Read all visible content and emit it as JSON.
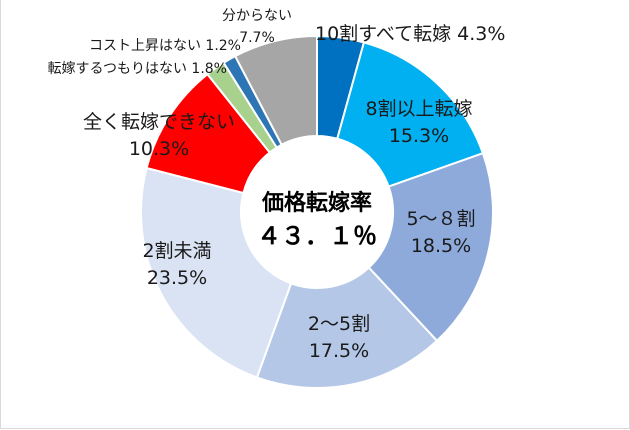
{
  "chart_data": {
    "type": "pie",
    "center_title": "価格転嫁率",
    "center_value": "４３．１％",
    "slices": [
      {
        "name": "10割すべて転嫁",
        "value": 4.3,
        "display": "4.3%",
        "color": "#0070c0"
      },
      {
        "name": "8割以上転嫁",
        "value": 15.3,
        "display": "15.3%",
        "color": "#00b0f0"
      },
      {
        "name": "5〜８割",
        "value": 18.5,
        "display": "18.5%",
        "color": "#8eaadb"
      },
      {
        "name": "2〜5割",
        "value": 17.5,
        "display": "17.5%",
        "color": "#b4c7e7"
      },
      {
        "name": "2割未満",
        "value": 23.5,
        "display": "23.5%",
        "color": "#dae3f3"
      },
      {
        "name": "全く転嫁できない",
        "value": 10.3,
        "display": "10.3%",
        "color": "#ff0000"
      },
      {
        "name": "転嫁するつもりはない",
        "value": 1.8,
        "display": "1.8%",
        "color": "#a9d18e"
      },
      {
        "name": "コスト上昇はない",
        "value": 1.2,
        "display": "1.2%",
        "color": "#2e75b6"
      },
      {
        "name": "分からない",
        "value": 7.7,
        "display": "7.7%",
        "color": "#a6a6a6"
      }
    ]
  }
}
